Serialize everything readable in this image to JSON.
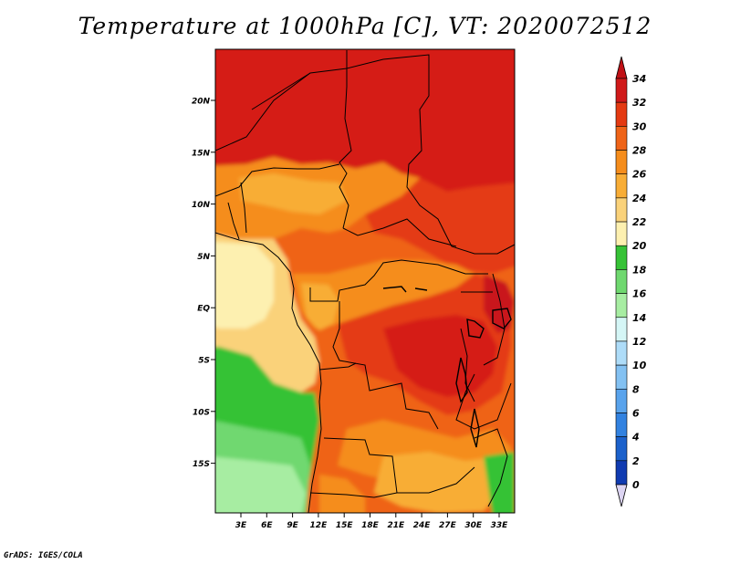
{
  "title": "Temperature at 1000hPa [C], VT: 2020072512",
  "credit": "GrADS: IGES/COLA",
  "map": {
    "lat_ticks": [
      "20N",
      "15N",
      "10N",
      "5N",
      "EQ",
      "5S",
      "10S",
      "15S"
    ],
    "lon_ticks": [
      "3E",
      "6E",
      "9E",
      "12E",
      "15E",
      "18E",
      "21E",
      "24E",
      "27E",
      "30E",
      "33E"
    ]
  },
  "colorbar": {
    "labels": [
      "34",
      "32",
      "30",
      "28",
      "26",
      "24",
      "22",
      "20",
      "18",
      "16",
      "14",
      "12",
      "10",
      "8",
      "6",
      "4",
      "2",
      "0"
    ],
    "colors": [
      "#d01a1a",
      "#e43a12",
      "#ef6418",
      "#f58d1c",
      "#f8ad36",
      "#fad27a",
      "#fdf0b0",
      "#36c236",
      "#6fd86f",
      "#a7eda2",
      "#d5f6f6",
      "#aedcf8",
      "#83c1f2",
      "#59a3ec",
      "#3282e0",
      "#1c61cb",
      "#103bb1",
      "#0d1477"
    ],
    "top_arrow_color": "#c01015",
    "bottom_arrow_color": "#dcd4f2"
  }
}
